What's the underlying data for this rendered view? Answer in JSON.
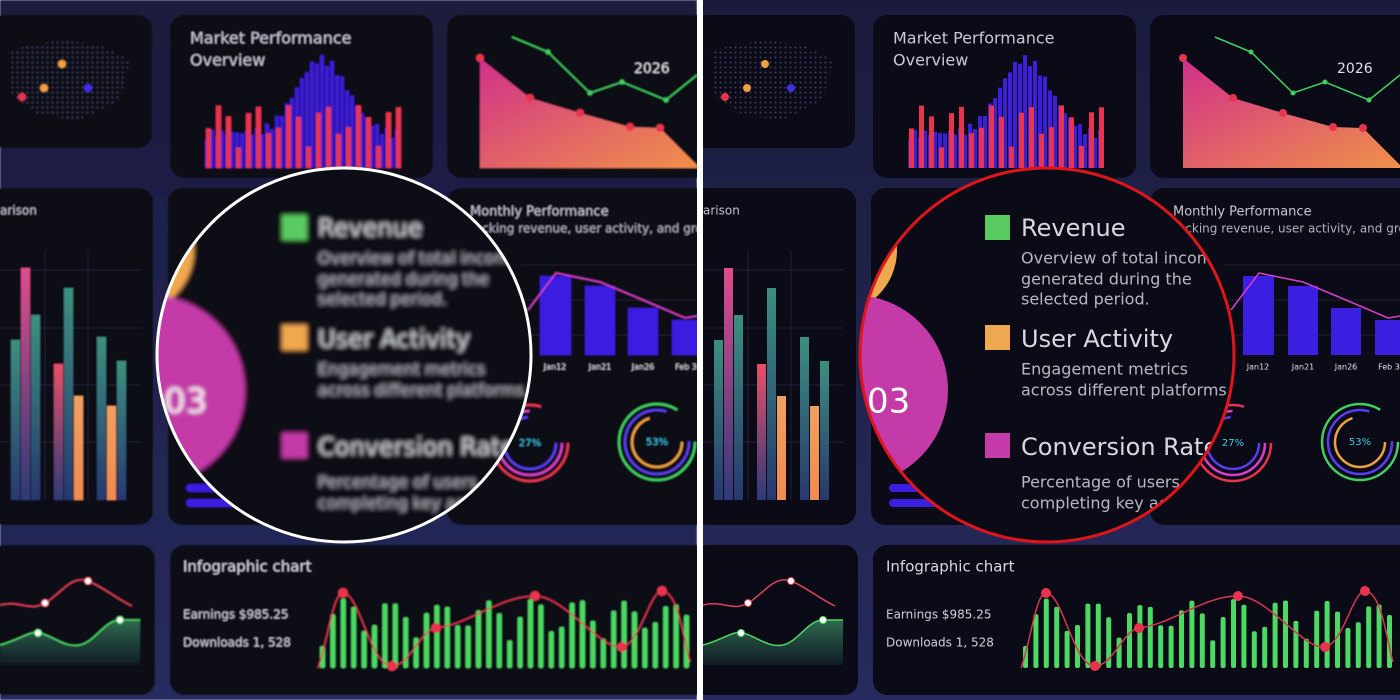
{
  "dashboard": {
    "market": {
      "title": [
        "Market Performance",
        "Overview"
      ]
    },
    "trend": {
      "year": "2026"
    },
    "comparison": {
      "title": "arison"
    },
    "monthly": {
      "title": "Monthly Performance",
      "subtitle": "racking revenue, user activity, and gro",
      "labels": [
        "Jan12",
        "Jan21",
        "Jan26",
        "Feb 3"
      ]
    },
    "rings": [
      "27%",
      "53%"
    ],
    "donut": {
      "label": "03"
    },
    "infographic": {
      "title": "Infographic chart",
      "earnings": "Earnings  $985.25",
      "downloads": "Downloads  1, 528"
    }
  },
  "legend": [
    {
      "name": "Revenue",
      "description": [
        "Overview of total incom",
        "generated during the",
        "selected period."
      ]
    },
    {
      "name": "User Activity",
      "description": [
        "Engagement metrics",
        "across different platforms."
      ]
    },
    {
      "name": "Conversion Rate",
      "description": [
        "Percentage of users",
        "completing key ac"
      ]
    }
  ]
}
